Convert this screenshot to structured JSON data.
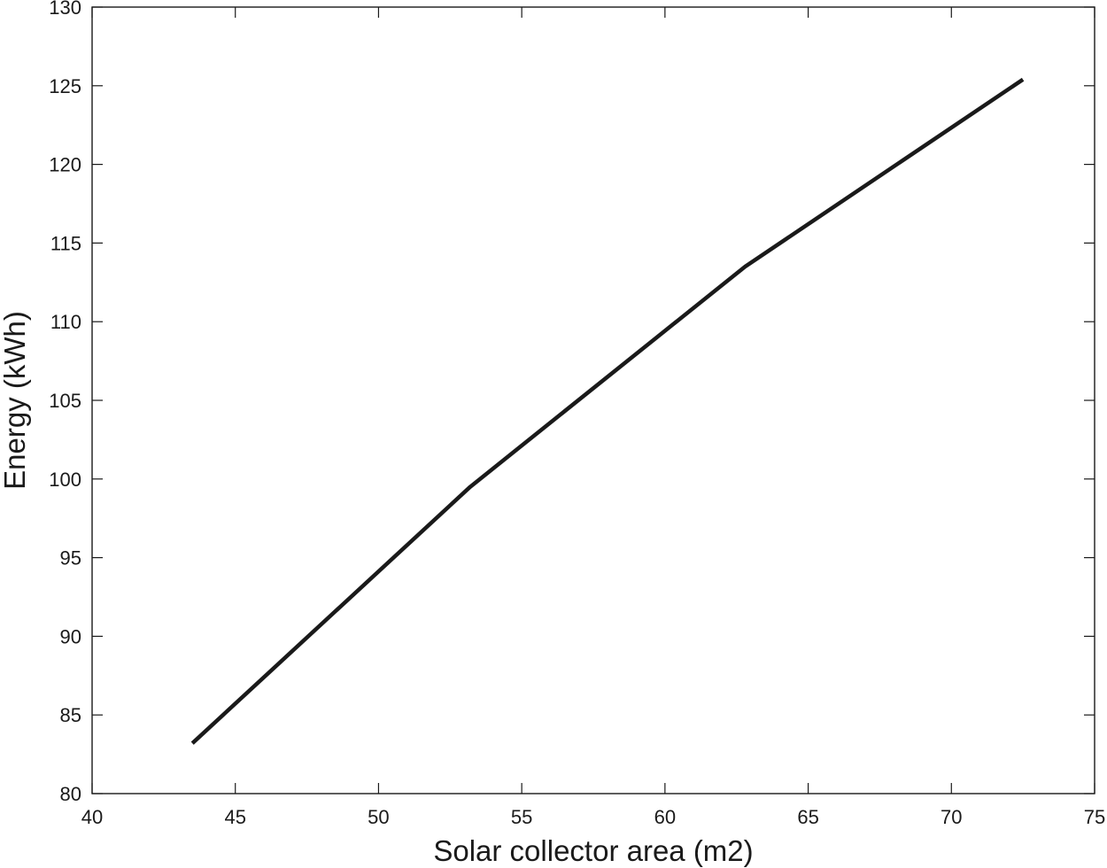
{
  "chart_data": {
    "type": "line",
    "title": "",
    "xlabel": "Solar collector area (m2)",
    "ylabel": "Energy (kWh)",
    "xlim": [
      40,
      75
    ],
    "ylim": [
      80,
      130
    ],
    "xticks": [
      "40",
      "45",
      "50",
      "55",
      "60",
      "65",
      "70",
      "75"
    ],
    "yticks": [
      "80",
      "85",
      "90",
      "95",
      "100",
      "105",
      "110",
      "115",
      "120",
      "125",
      "130"
    ],
    "grid": false,
    "legend": "none",
    "line_color": "#1a1a1a",
    "series": [
      {
        "x": [
          43.5,
          53.2,
          62.8,
          72.5
        ],
        "y": [
          83.2,
          99.5,
          113.5,
          125.4
        ]
      }
    ]
  }
}
